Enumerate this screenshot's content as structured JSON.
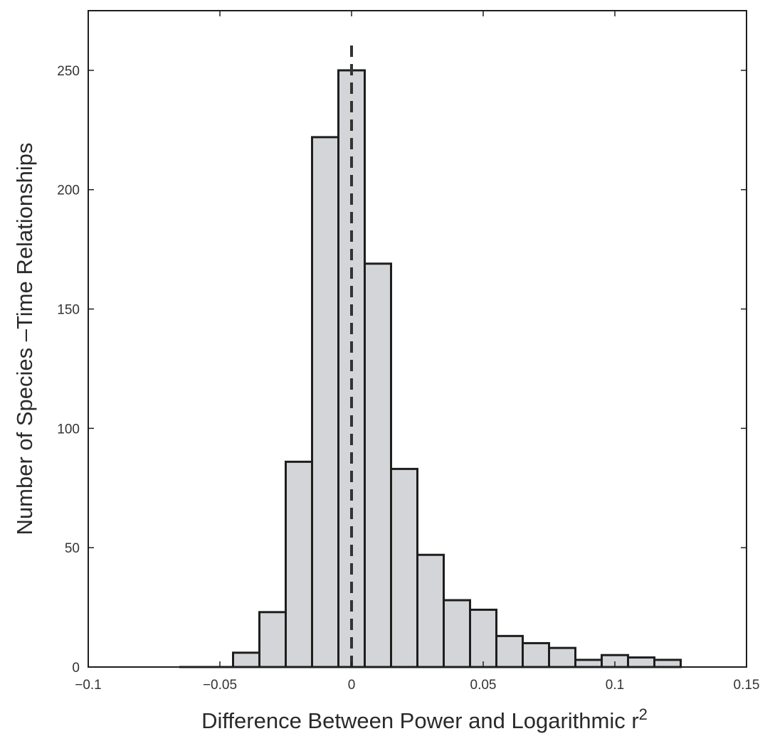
{
  "chart_data": {
    "type": "bar",
    "subtype": "histogram",
    "xlabel": "Difference Between Power and Logarithmic r",
    "xlabel_superscript": "2",
    "ylabel": "Number of Species –Time Relationships",
    "xlim": [
      -0.1,
      0.15
    ],
    "ylim": [
      0,
      275
    ],
    "x_ticks": [
      {
        "value": -0.1,
        "label": "−0.1"
      },
      {
        "value": -0.05,
        "label": "−0.05"
      },
      {
        "value": 0,
        "label": "0"
      },
      {
        "value": 0.05,
        "label": "0.05"
      },
      {
        "value": 0.1,
        "label": "0.1"
      },
      {
        "value": 0.15,
        "label": "0.15"
      }
    ],
    "y_ticks": [
      {
        "value": 0,
        "label": "0"
      },
      {
        "value": 50,
        "label": "50"
      },
      {
        "value": 100,
        "label": "100"
      },
      {
        "value": 150,
        "label": "150"
      },
      {
        "value": 200,
        "label": "200"
      },
      {
        "value": 250,
        "label": "250"
      }
    ],
    "bin_width": 0.01,
    "bin_centers": [
      -0.06,
      -0.05,
      -0.04,
      -0.03,
      -0.02,
      -0.01,
      0.0,
      0.01,
      0.02,
      0.03,
      0.04,
      0.05,
      0.06,
      0.07,
      0.08,
      0.09,
      0.1,
      0.11,
      0.12
    ],
    "values": [
      0,
      0,
      6,
      23,
      86,
      222,
      250,
      169,
      83,
      47,
      28,
      24,
      13,
      10,
      8,
      3,
      5,
      4,
      3
    ],
    "reference_line": {
      "x": 0,
      "style": "dashed",
      "y_top": 262
    },
    "grid": false,
    "colors": {
      "bar_fill": "#d4d5d8",
      "bar_stroke": "#1e1e1e",
      "axis": "#1e1e1e",
      "ref_line": "#333333"
    }
  }
}
